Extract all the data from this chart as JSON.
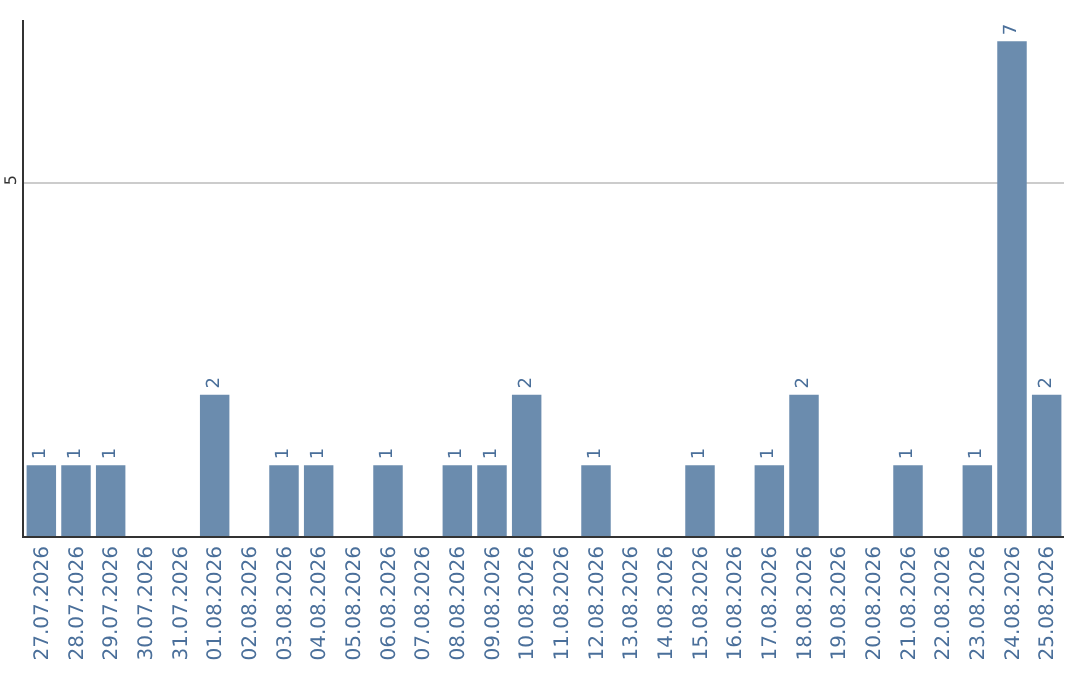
{
  "chart_data": {
    "type": "bar",
    "categories": [
      "27.07.2026",
      "28.07.2026",
      "29.07.2026",
      "30.07.2026",
      "31.07.2026",
      "01.08.2026",
      "02.08.2026",
      "03.08.2026",
      "04.08.2026",
      "05.08.2026",
      "06.08.2026",
      "07.08.2026",
      "08.08.2026",
      "09.08.2026",
      "10.08.2026",
      "11.08.2026",
      "12.08.2026",
      "13.08.2026",
      "14.08.2026",
      "15.08.2026",
      "16.08.2026",
      "17.08.2026",
      "18.08.2026",
      "19.08.2026",
      "20.08.2026",
      "21.08.2026",
      "22.08.2026",
      "23.08.2026",
      "24.08.2026",
      "25.08.2026"
    ],
    "values": [
      1,
      1,
      1,
      0,
      0,
      2,
      0,
      1,
      1,
      0,
      1,
      0,
      1,
      1,
      2,
      0,
      1,
      0,
      0,
      1,
      0,
      1,
      2,
      0,
      0,
      1,
      0,
      1,
      7,
      2
    ],
    "value_labels": [
      "1",
      "1",
      "1",
      null,
      null,
      "2",
      null,
      "1",
      "1",
      null,
      "1",
      null,
      "1",
      "1",
      "2",
      null,
      "1",
      null,
      null,
      "1",
      null,
      "1",
      "2",
      null,
      null,
      "1",
      null,
      "1",
      "7",
      "2"
    ],
    "color": "#6b8cae",
    "ylim": [
      0,
      7.3
    ],
    "yticks": [
      5
    ],
    "grid": "y"
  }
}
